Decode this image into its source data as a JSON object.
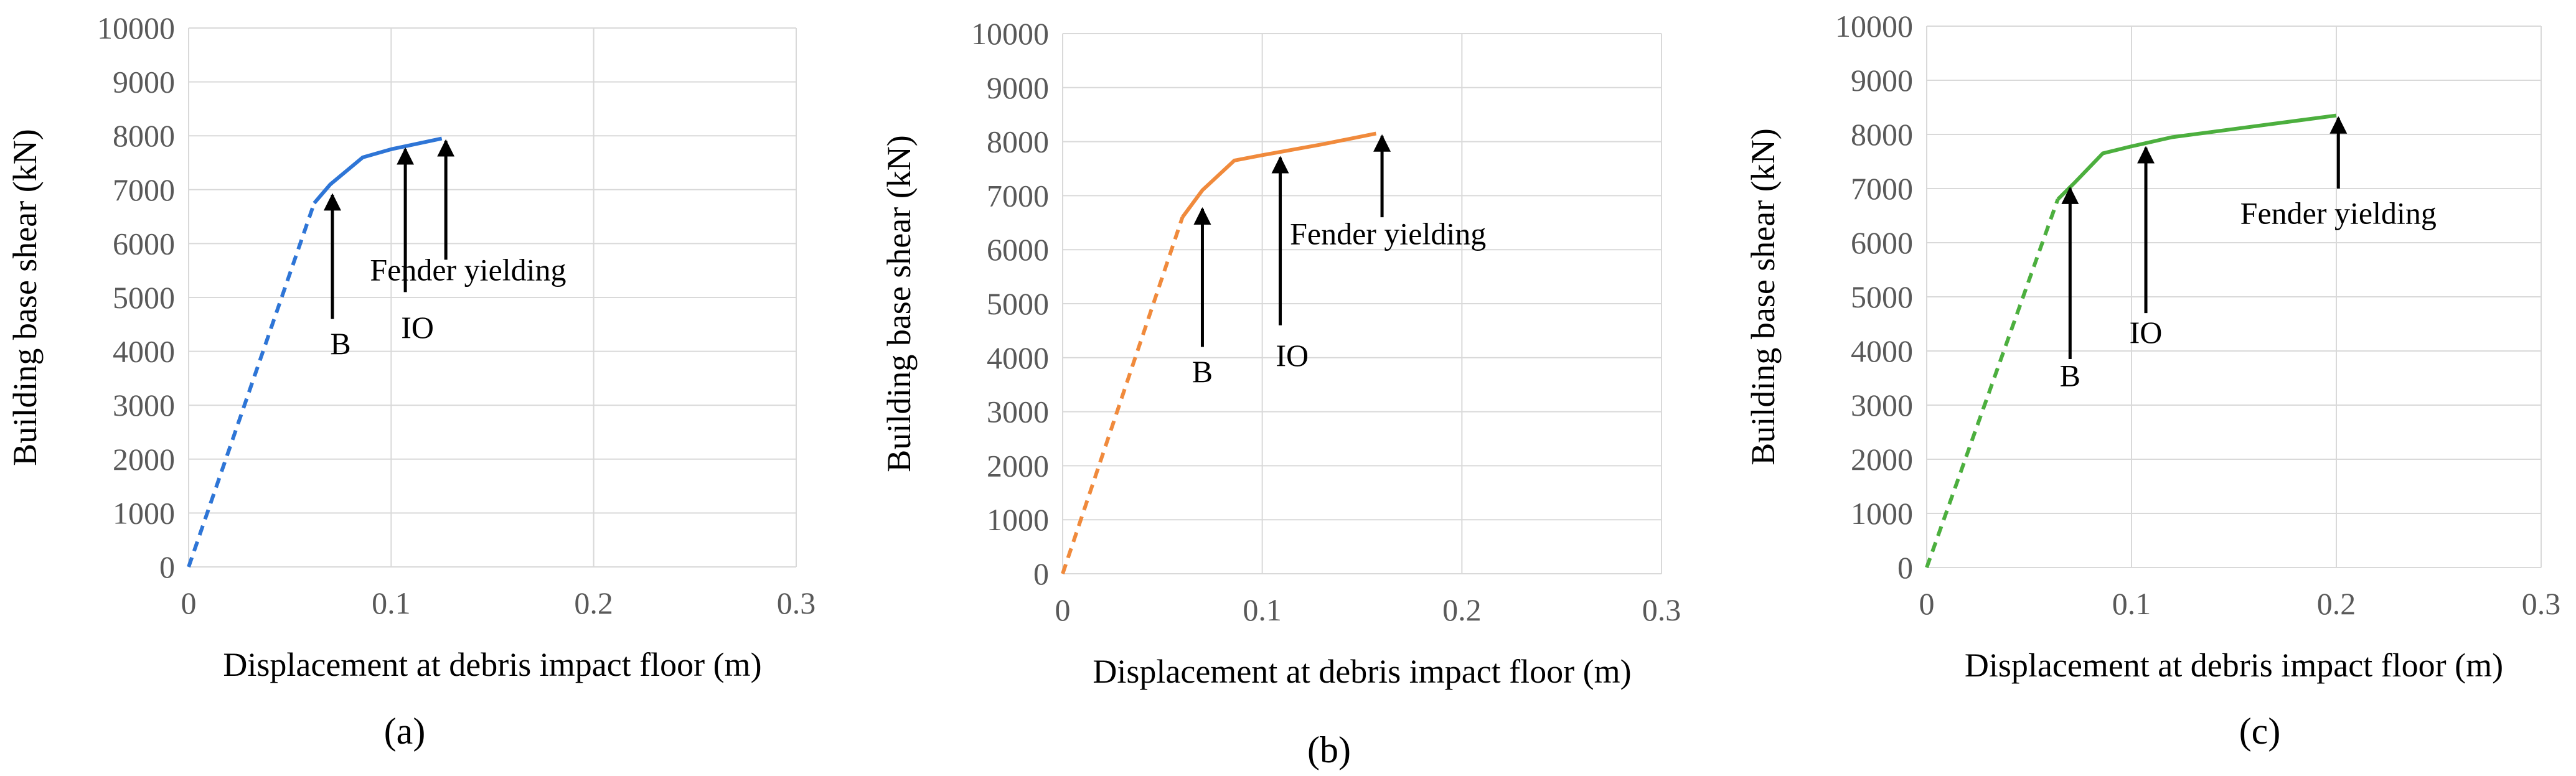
{
  "chart_data": [
    {
      "type": "line",
      "panel_label": "(a)",
      "xlabel": "Displacement at debris impact floor (m)",
      "ylabel": "Building base shear (kN)",
      "xlim": [
        0,
        0.3
      ],
      "ylim": [
        0,
        10000
      ],
      "x_ticks": [
        "0",
        "0.1",
        "0.2",
        "0.3"
      ],
      "y_ticks": [
        "0",
        "1000",
        "2000",
        "3000",
        "4000",
        "5000",
        "6000",
        "7000",
        "8000",
        "9000",
        "10000"
      ],
      "grid": true,
      "color": "#2e75d6",
      "series": [
        {
          "style": "dashed",
          "x": [
            0,
            0.062
          ],
          "y": [
            0,
            6750
          ]
        },
        {
          "style": "solid",
          "x": [
            0.062,
            0.07,
            0.086,
            0.1,
            0.125
          ],
          "y": [
            6750,
            7100,
            7600,
            7750,
            7950
          ]
        }
      ],
      "annotations": [
        {
          "text": "B",
          "x": 0.071,
          "y_tip": 6950,
          "y_tail": 4600,
          "text_x": 0.075,
          "text_y": 3950
        },
        {
          "text": "IO",
          "x": 0.107,
          "y_tip": 7800,
          "y_tail": 5100,
          "text_x": 0.113,
          "text_y": 4250
        },
        {
          "text": "Fender yielding",
          "x": 0.127,
          "y_tip": 7950,
          "y_tail": 5700,
          "text_x": 0.138,
          "text_y": 5320
        }
      ]
    },
    {
      "type": "line",
      "panel_label": "(b)",
      "xlabel": "Displacement at debris impact floor (m)",
      "ylabel": "Building base shear (kN)",
      "xlim": [
        0,
        0.3
      ],
      "ylim": [
        0,
        10000
      ],
      "x_ticks": [
        "0",
        "0.1",
        "0.2",
        "0.3"
      ],
      "y_ticks": [
        "0",
        "1000",
        "2000",
        "3000",
        "4000",
        "5000",
        "6000",
        "7000",
        "8000",
        "9000",
        "10000"
      ],
      "grid": true,
      "color": "#f08a3c",
      "series": [
        {
          "style": "dashed",
          "x": [
            0,
            0.06
          ],
          "y": [
            0,
            6600
          ]
        },
        {
          "style": "solid",
          "x": [
            0.06,
            0.07,
            0.086,
            0.1,
            0.13,
            0.157
          ],
          "y": [
            6600,
            7100,
            7650,
            7750,
            7950,
            8150
          ]
        }
      ],
      "annotations": [
        {
          "text": "B",
          "x": 0.07,
          "y_tip": 6800,
          "y_tail": 4200,
          "text_x": 0.07,
          "text_y": 3550
        },
        {
          "text": "IO",
          "x": 0.109,
          "y_tip": 7750,
          "y_tail": 4600,
          "text_x": 0.115,
          "text_y": 3850
        },
        {
          "text": "Fender yielding",
          "x": 0.16,
          "y_tip": 8150,
          "y_tail": 6600,
          "text_x": 0.163,
          "text_y": 6100
        }
      ]
    },
    {
      "type": "line",
      "panel_label": "(c)",
      "xlabel": "Displacement at debris impact floor (m)",
      "ylabel": "Building base shear (kN)",
      "xlim": [
        0,
        0.3
      ],
      "ylim": [
        0,
        10000
      ],
      "x_ticks": [
        "0",
        "0.1",
        "0.2",
        "0.3"
      ],
      "y_ticks": [
        "0",
        "1000",
        "2000",
        "3000",
        "4000",
        "5000",
        "6000",
        "7000",
        "8000",
        "9000",
        "10000"
      ],
      "grid": true,
      "color": "#4caf3e",
      "series": [
        {
          "style": "dashed",
          "x": [
            0,
            0.064
          ],
          "y": [
            0,
            6800
          ]
        },
        {
          "style": "solid",
          "x": [
            0.064,
            0.072,
            0.086,
            0.1,
            0.12,
            0.15,
            0.2
          ],
          "y": [
            6800,
            7100,
            7650,
            7780,
            7950,
            8100,
            8350
          ]
        }
      ],
      "annotations": [
        {
          "text": "B",
          "x": 0.07,
          "y_tip": 7050,
          "y_tail": 3850,
          "text_x": 0.07,
          "text_y": 3350
        },
        {
          "text": "IO",
          "x": 0.107,
          "y_tip": 7800,
          "y_tail": 4700,
          "text_x": 0.107,
          "text_y": 4150
        },
        {
          "text": "Fender yielding",
          "x": 0.201,
          "y_tip": 8350,
          "y_tail": 7000,
          "text_x": 0.201,
          "text_y": 6350
        }
      ]
    }
  ]
}
